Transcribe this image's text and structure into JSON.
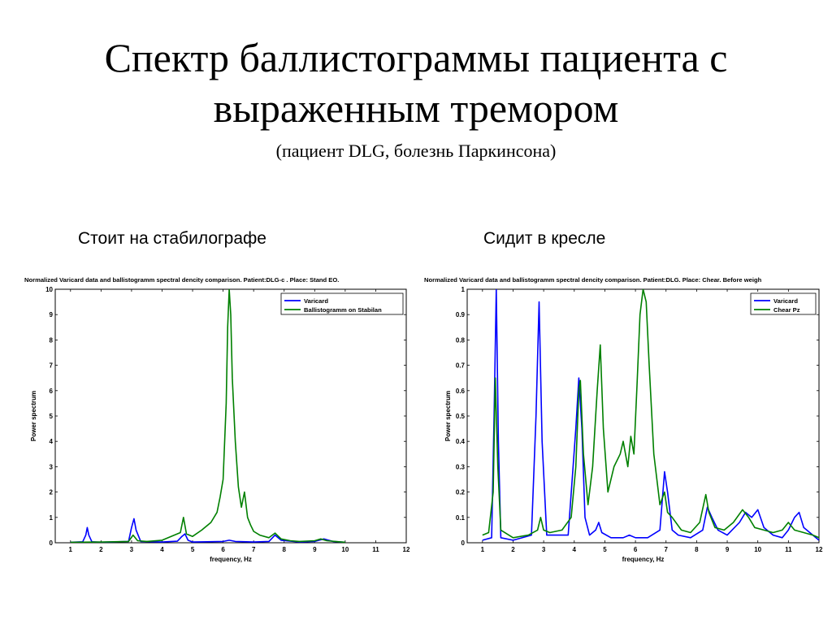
{
  "slide": {
    "title": "Спектр баллистограммы пациента с выраженным тремором",
    "subtitle": "(пациент DLG, болезнь Паркинсона)"
  },
  "panels": {
    "left_caption": "Стоит на стабилографе",
    "right_caption": "Сидит в кресле"
  },
  "chart_data": [
    {
      "type": "line",
      "title": "Normalized Varicard data and ballistogramm spectral dencity comparison. Patient:DLG-c . Place: Stand EO.",
      "xlabel": "frequency, Hz",
      "ylabel": "Power spectrum",
      "xlim": [
        0.5,
        12
      ],
      "ylim": [
        0,
        10
      ],
      "xticks": [
        "1",
        "2",
        "3",
        "4",
        "5",
        "6",
        "7",
        "8",
        "9",
        "10",
        "11",
        "12"
      ],
      "yticks": [
        "0",
        "1",
        "2",
        "3",
        "4",
        "5",
        "6",
        "7",
        "8",
        "9",
        "10"
      ],
      "legend_position": "top-right",
      "series": [
        {
          "name": "Varicard",
          "color": "#0000ff",
          "x": [
            1,
            1.4,
            1.5,
            1.55,
            1.6,
            1.7,
            2,
            2.9,
            3.0,
            3.08,
            3.15,
            3.3,
            4,
            4.5,
            4.65,
            4.75,
            4.85,
            5,
            6,
            6.2,
            6.4,
            7,
            7.5,
            7.7,
            7.9,
            8.5,
            9,
            9.3,
            9.6,
            10
          ],
          "y": [
            0.02,
            0.04,
            0.3,
            0.6,
            0.3,
            0.04,
            0.02,
            0.05,
            0.6,
            0.95,
            0.5,
            0.05,
            0.03,
            0.06,
            0.25,
            0.35,
            0.1,
            0.03,
            0.05,
            0.1,
            0.05,
            0.03,
            0.05,
            0.3,
            0.1,
            0.03,
            0.05,
            0.15,
            0.05,
            0.02
          ]
        },
        {
          "name": "Ballistogramm on Stabilan",
          "color": "#008000",
          "x": [
            1,
            2,
            2.9,
            3.05,
            3.2,
            3.5,
            4,
            4.4,
            4.6,
            4.7,
            4.8,
            5,
            5.3,
            5.6,
            5.8,
            5.9,
            6.0,
            6.1,
            6.15,
            6.2,
            6.25,
            6.3,
            6.4,
            6.5,
            6.6,
            6.7,
            6.8,
            6.9,
            7,
            7.2,
            7.5,
            7.7,
            7.9,
            8.2,
            8.5,
            9,
            9.2,
            9.4,
            9.8,
            10
          ],
          "y": [
            0.02,
            0.03,
            0.05,
            0.3,
            0.08,
            0.05,
            0.1,
            0.3,
            0.4,
            1.0,
            0.35,
            0.25,
            0.5,
            0.8,
            1.2,
            1.8,
            2.5,
            5.5,
            8.5,
            10,
            9,
            6.5,
            4.0,
            2.2,
            1.4,
            2.0,
            1.0,
            0.7,
            0.45,
            0.3,
            0.2,
            0.38,
            0.15,
            0.08,
            0.05,
            0.08,
            0.15,
            0.08,
            0.04,
            0.02
          ]
        }
      ]
    },
    {
      "type": "line",
      "title": "Normalized Varicard data and ballistogramm spectral dencity comparison. Patient:DLG. Place: Chear. Before weigh",
      "xlabel": "frequency, Hz",
      "ylabel": "Power spectrum",
      "xlim": [
        0.5,
        12
      ],
      "ylim": [
        0,
        1
      ],
      "xticks": [
        "1",
        "2",
        "3",
        "4",
        "5",
        "6",
        "7",
        "8",
        "9",
        "10",
        "11",
        "12"
      ],
      "yticks": [
        "0",
        "0.1",
        "0.2",
        "0.3",
        "0.4",
        "0.5",
        "0.6",
        "0.7",
        "0.8",
        "0.9",
        "1"
      ],
      "legend_position": "top-right",
      "series": [
        {
          "name": "Varicard",
          "color": "#0000ff",
          "x": [
            1,
            1.3,
            1.38,
            1.45,
            1.52,
            1.6,
            2,
            2.6,
            2.75,
            2.85,
            2.95,
            3.1,
            3.8,
            4.05,
            4.15,
            4.25,
            4.35,
            4.5,
            4.7,
            4.8,
            4.9,
            5.2,
            5.6,
            5.8,
            6.0,
            6.4,
            6.8,
            6.95,
            7.05,
            7.2,
            7.4,
            7.8,
            8.2,
            8.35,
            8.5,
            8.7,
            9,
            9.4,
            9.6,
            9.8,
            10.0,
            10.2,
            10.5,
            10.8,
            11,
            11.2,
            11.35,
            11.5,
            11.7,
            11.9,
            12
          ],
          "y": [
            0.01,
            0.02,
            0.5,
            1.0,
            0.4,
            0.02,
            0.01,
            0.03,
            0.5,
            0.95,
            0.4,
            0.03,
            0.03,
            0.45,
            0.65,
            0.45,
            0.1,
            0.03,
            0.05,
            0.08,
            0.04,
            0.02,
            0.02,
            0.03,
            0.02,
            0.02,
            0.05,
            0.28,
            0.2,
            0.05,
            0.03,
            0.02,
            0.05,
            0.14,
            0.1,
            0.05,
            0.03,
            0.08,
            0.12,
            0.1,
            0.13,
            0.06,
            0.03,
            0.02,
            0.05,
            0.1,
            0.12,
            0.06,
            0.04,
            0.02,
            0.01
          ]
        },
        {
          "name": "Chear Pz",
          "color": "#008000",
          "x": [
            1,
            1.2,
            1.35,
            1.42,
            1.5,
            1.6,
            2,
            2.5,
            2.8,
            2.9,
            3.0,
            3.2,
            3.6,
            3.9,
            4.05,
            4.15,
            4.2,
            4.3,
            4.45,
            4.6,
            4.75,
            4.85,
            4.95,
            5.1,
            5.3,
            5.5,
            5.6,
            5.75,
            5.85,
            5.95,
            6.05,
            6.15,
            6.25,
            6.35,
            6.45,
            6.6,
            6.8,
            6.95,
            7.05,
            7.2,
            7.5,
            7.8,
            8.1,
            8.3,
            8.4,
            8.6,
            8.9,
            9.2,
            9.5,
            9.7,
            9.9,
            10.2,
            10.5,
            10.8,
            11.0,
            11.2,
            11.5,
            11.8,
            12
          ],
          "y": [
            0.03,
            0.04,
            0.2,
            0.65,
            0.3,
            0.05,
            0.02,
            0.03,
            0.05,
            0.1,
            0.05,
            0.04,
            0.05,
            0.1,
            0.3,
            0.6,
            0.64,
            0.35,
            0.15,
            0.3,
            0.6,
            0.78,
            0.45,
            0.2,
            0.3,
            0.35,
            0.4,
            0.3,
            0.42,
            0.35,
            0.62,
            0.9,
            1.0,
            0.95,
            0.7,
            0.35,
            0.15,
            0.2,
            0.12,
            0.1,
            0.05,
            0.04,
            0.08,
            0.19,
            0.12,
            0.06,
            0.05,
            0.08,
            0.13,
            0.1,
            0.06,
            0.05,
            0.04,
            0.05,
            0.08,
            0.05,
            0.04,
            0.03,
            0.02
          ]
        }
      ]
    }
  ]
}
